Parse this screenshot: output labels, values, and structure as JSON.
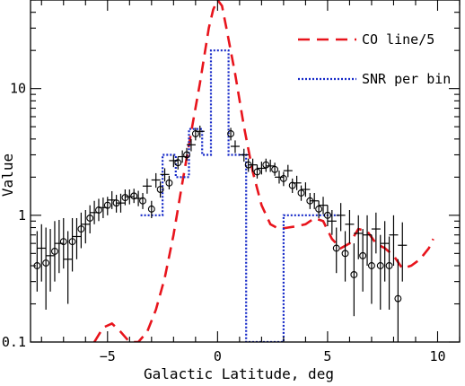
{
  "chart_data": {
    "type": "line",
    "title": "",
    "xlabel": "Galactic Latitude, deg",
    "ylabel": "Value",
    "xlim": [
      -8.5,
      11
    ],
    "ylim": [
      0.1,
      50
    ],
    "yscale": "log",
    "grid": false,
    "legend_position": "top-right",
    "x_ticks": [
      -5,
      0,
      5,
      10
    ],
    "x_tick_labels": [
      "−5",
      "0",
      "5",
      "10"
    ],
    "y_ticks": [
      0.1,
      1,
      10
    ],
    "y_tick_labels": [
      "0.1",
      "1",
      "10"
    ],
    "series": [
      {
        "name": "CO line/5",
        "style": "dashed",
        "color": "#e8141c",
        "x": [
          -5.6,
          -5.2,
          -4.8,
          -4.4,
          -4.0,
          -3.6,
          -3.2,
          -2.8,
          -2.4,
          -2.0,
          -1.6,
          -1.2,
          -0.8,
          -0.4,
          -0.2,
          0.0,
          0.2,
          0.4,
          0.8,
          1.2,
          1.6,
          2.0,
          2.4,
          2.8,
          3.2,
          3.6,
          4.0,
          4.4,
          4.8,
          5.2,
          5.6,
          6.0,
          6.4,
          6.8,
          7.2,
          7.6,
          8.0,
          8.4,
          8.8,
          9.2,
          9.6,
          9.8
        ],
        "y": [
          0.1,
          0.13,
          0.14,
          0.12,
          0.1,
          0.1,
          0.12,
          0.18,
          0.32,
          0.7,
          1.8,
          4.5,
          11,
          30,
          42,
          50,
          45,
          30,
          13,
          5,
          2.2,
          1.2,
          0.85,
          0.78,
          0.8,
          0.82,
          0.85,
          0.95,
          0.9,
          0.65,
          0.55,
          0.6,
          0.78,
          0.75,
          0.6,
          0.55,
          0.48,
          0.38,
          0.4,
          0.45,
          0.55,
          0.65
        ]
      },
      {
        "name": "SNR per bin",
        "style": "dotted-step",
        "color": "#1428c8",
        "bins": [
          [
            -3.5,
            -2.5,
            1.0
          ],
          [
            -2.5,
            -1.9,
            3.0
          ],
          [
            -1.9,
            -1.3,
            2.0
          ],
          [
            -1.3,
            -0.7,
            4.8
          ],
          [
            -0.7,
            -0.3,
            3.0
          ],
          [
            -0.3,
            0.5,
            20.0
          ],
          [
            0.5,
            1.3,
            3.0
          ],
          [
            1.3,
            3.0,
            0.1
          ],
          [
            3.0,
            5.5,
            1.0
          ]
        ]
      },
      {
        "name": "",
        "style": "points-circle",
        "color": "#000000",
        "points": [
          [
            -8.2,
            0.4,
            0.25,
            0.75
          ],
          [
            -7.8,
            0.42,
            0.18,
            0.8
          ],
          [
            -7.4,
            0.52,
            0.3,
            0.9
          ],
          [
            -7.0,
            0.62,
            0.38,
            0.95
          ],
          [
            -6.6,
            0.62,
            0.36,
            0.95
          ],
          [
            -6.2,
            0.78,
            0.55,
            1.05
          ],
          [
            -5.8,
            0.95,
            0.72,
            1.2
          ],
          [
            -5.4,
            1.1,
            0.9,
            1.35
          ],
          [
            -5.0,
            1.2,
            1.0,
            1.4
          ],
          [
            -4.6,
            1.25,
            1.05,
            1.45
          ],
          [
            -4.2,
            1.38,
            1.2,
            1.6
          ],
          [
            -3.8,
            1.42,
            1.25,
            1.62
          ],
          [
            -3.4,
            1.3,
            1.12,
            1.5
          ],
          [
            -3.0,
            1.12,
            0.95,
            1.3
          ],
          [
            -2.6,
            1.6,
            1.38,
            1.85
          ],
          [
            -2.2,
            1.8,
            1.6,
            2.05
          ],
          [
            -1.8,
            2.6,
            2.3,
            2.9
          ],
          [
            -1.4,
            3.0,
            2.7,
            3.4
          ],
          [
            -1.0,
            4.4,
            3.9,
            4.9
          ],
          [
            0.6,
            4.4,
            3.9,
            4.9
          ],
          [
            1.4,
            2.5,
            2.2,
            2.8
          ],
          [
            1.8,
            2.2,
            1.95,
            2.5
          ],
          [
            2.2,
            2.5,
            2.2,
            2.8
          ],
          [
            2.6,
            2.3,
            2.05,
            2.6
          ],
          [
            3.0,
            1.95,
            1.7,
            2.2
          ],
          [
            3.4,
            1.72,
            1.5,
            1.95
          ],
          [
            3.8,
            1.5,
            1.3,
            1.72
          ],
          [
            4.2,
            1.3,
            1.12,
            1.5
          ],
          [
            4.6,
            1.12,
            0.95,
            1.3
          ],
          [
            5.0,
            1.0,
            0.82,
            1.2
          ],
          [
            5.4,
            0.55,
            0.35,
            0.8
          ],
          [
            5.8,
            0.5,
            0.3,
            0.75
          ],
          [
            6.2,
            0.34,
            0.16,
            0.6
          ],
          [
            6.6,
            0.48,
            0.25,
            0.78
          ],
          [
            7.0,
            0.4,
            0.2,
            0.7
          ],
          [
            7.4,
            0.4,
            0.18,
            0.7
          ],
          [
            7.8,
            0.4,
            0.18,
            0.68
          ],
          [
            8.2,
            0.22,
            0.1,
            0.45
          ]
        ]
      },
      {
        "name": "",
        "style": "points-cross",
        "color": "#000000",
        "points": [
          [
            -8.0,
            0.55,
            0.3,
            0.85
          ],
          [
            -7.6,
            0.48,
            0.25,
            0.78
          ],
          [
            -7.2,
            0.6,
            0.35,
            0.92
          ],
          [
            -6.8,
            0.45,
            0.2,
            0.75
          ],
          [
            -6.4,
            0.68,
            0.45,
            0.95
          ],
          [
            -6.0,
            0.85,
            0.6,
            1.1
          ],
          [
            -5.6,
            1.05,
            0.85,
            1.3
          ],
          [
            -5.2,
            1.15,
            0.95,
            1.38
          ],
          [
            -4.8,
            1.32,
            1.12,
            1.55
          ],
          [
            -4.4,
            1.25,
            1.05,
            1.48
          ],
          [
            -4.0,
            1.4,
            1.22,
            1.6
          ],
          [
            -3.6,
            1.36,
            1.18,
            1.56
          ],
          [
            -3.2,
            1.7,
            1.48,
            1.95
          ],
          [
            -2.8,
            1.9,
            1.65,
            2.15
          ],
          [
            -2.4,
            2.1,
            1.85,
            2.35
          ],
          [
            -2.0,
            2.7,
            2.4,
            3.0
          ],
          [
            -1.6,
            2.9,
            2.6,
            3.25
          ],
          [
            -1.2,
            3.6,
            3.2,
            4.0
          ],
          [
            -0.8,
            4.6,
            4.1,
            5.1
          ],
          [
            0.8,
            3.5,
            3.1,
            3.9
          ],
          [
            1.2,
            3.0,
            2.65,
            3.35
          ],
          [
            1.6,
            2.5,
            2.2,
            2.8
          ],
          [
            2.0,
            2.35,
            2.1,
            2.65
          ],
          [
            2.4,
            2.45,
            2.2,
            2.75
          ],
          [
            2.8,
            2.0,
            1.78,
            2.25
          ],
          [
            3.2,
            2.25,
            2.0,
            2.5
          ],
          [
            3.6,
            1.8,
            1.58,
            2.05
          ],
          [
            4.0,
            1.6,
            1.4,
            1.82
          ],
          [
            4.4,
            1.3,
            1.12,
            1.5
          ],
          [
            4.8,
            1.2,
            1.02,
            1.4
          ],
          [
            5.2,
            0.9,
            0.7,
            1.1
          ],
          [
            5.6,
            1.0,
            0.75,
            1.25
          ],
          [
            6.0,
            0.85,
            0.6,
            1.1
          ],
          [
            6.4,
            0.72,
            0.45,
            1.0
          ],
          [
            6.8,
            0.7,
            0.4,
            1.0
          ],
          [
            7.2,
            0.78,
            0.5,
            1.05
          ],
          [
            7.6,
            0.6,
            0.3,
            0.9
          ],
          [
            8.0,
            0.7,
            0.4,
            1.0
          ],
          [
            8.4,
            0.58,
            0.3,
            0.88
          ]
        ]
      }
    ]
  }
}
